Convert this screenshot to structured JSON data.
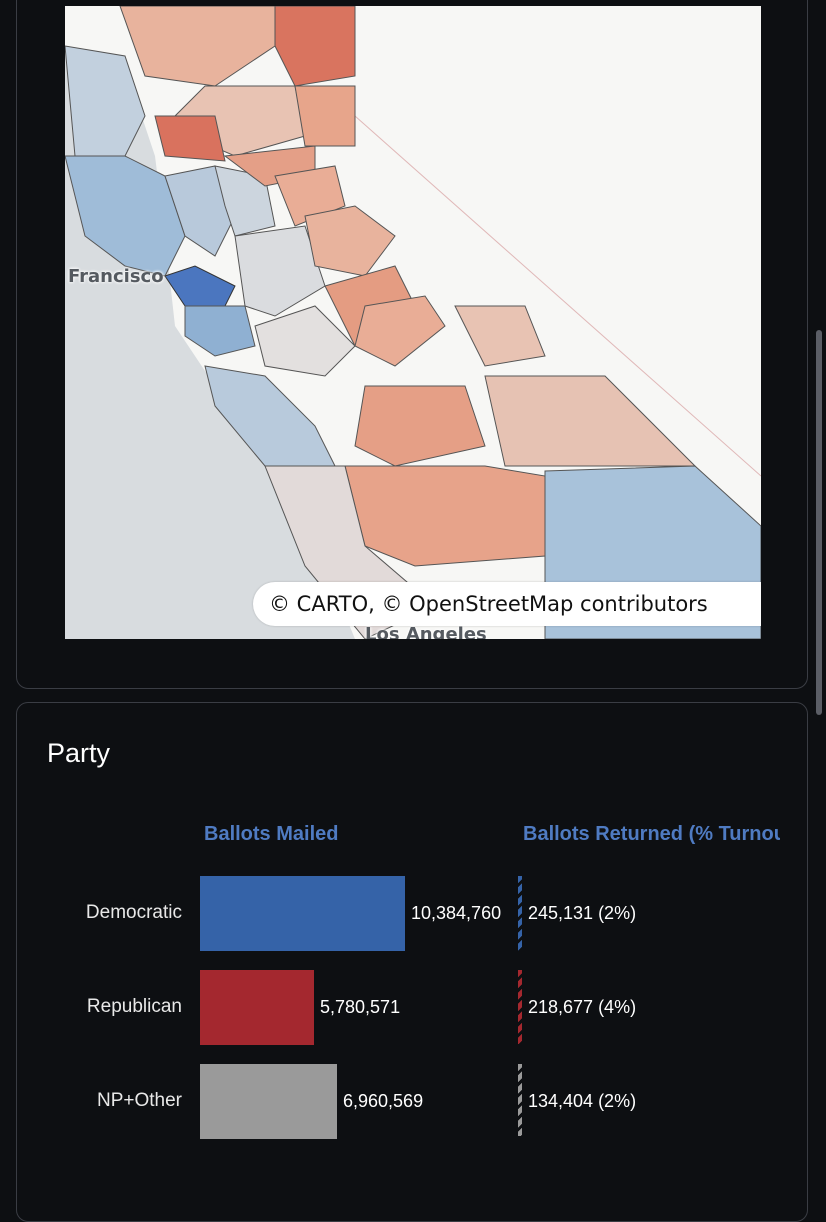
{
  "map": {
    "city_labels": {
      "sf": "Francisco",
      "la": "Los Angeles"
    },
    "attribution": "© CARTO, © OpenStreetMap contributors",
    "info_glyph": "i",
    "colors": {
      "dem": "#a9c3dd",
      "dem_dark": "#4f7bc2",
      "rep": "#e7a58b",
      "rep_dark": "#d9725e",
      "rep_light": "#e8c3b3",
      "neutral": "#dcdcde",
      "water": "#d8dcdf",
      "land": "#f7f7f5"
    }
  },
  "party": {
    "title": "Party",
    "header_mailed": "Ballots Mailed",
    "header_returned": "Ballots Returned (% Turnout)",
    "colors": {
      "Democratic": "#3563a8",
      "Republican": "#a4282f",
      "NP+Other": "#9a9a9a"
    },
    "rows": [
      {
        "label": "Democratic",
        "mailed": 10384760,
        "mailed_label": "10,384,760",
        "returned": 245131,
        "returned_label": "245,131 (2%)"
      },
      {
        "label": "Republican",
        "mailed": 5780571,
        "mailed_label": "5,780,571",
        "returned": 218677,
        "returned_label": "218,677 (4%)"
      },
      {
        "label": "NP+Other",
        "mailed": 6960569,
        "mailed_label": "6,960,569",
        "returned": 134404,
        "returned_label": "134,404 (2%)"
      }
    ]
  }
}
